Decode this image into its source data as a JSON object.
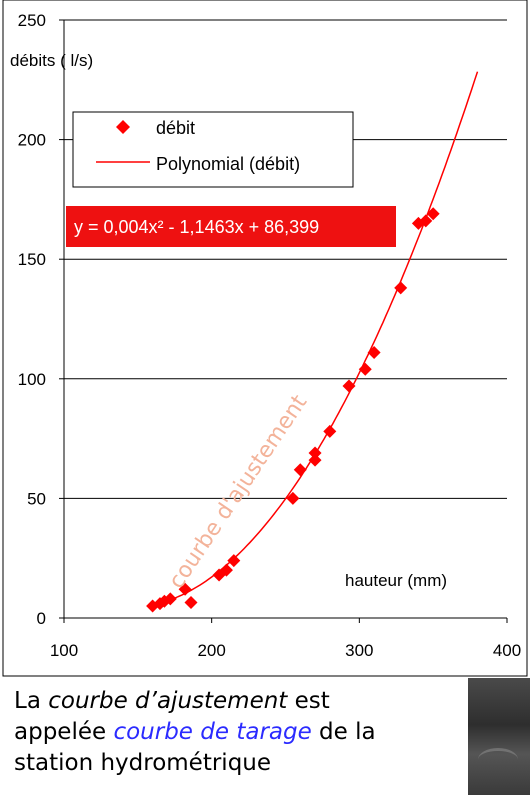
{
  "chart_data": {
    "type": "scatter",
    "ylabel": "débits ( l/s)",
    "xlabel": "hauteur (mm)",
    "xlim": [
      100,
      400
    ],
    "ylim": [
      0,
      250
    ],
    "xticks": [
      "100",
      "200",
      "300",
      "400"
    ],
    "yticks": [
      "0",
      "50",
      "100",
      "150",
      "200",
      "250"
    ],
    "grid": "horizontal",
    "legend_position": "top-left",
    "series": [
      {
        "name": "débit",
        "marker": "diamond",
        "color": "#ff0000",
        "points": [
          [
            160,
            5
          ],
          [
            165,
            6
          ],
          [
            168,
            7
          ],
          [
            172,
            8
          ],
          [
            182,
            12
          ],
          [
            186,
            6.5
          ],
          [
            205,
            18
          ],
          [
            210,
            20
          ],
          [
            215,
            24
          ],
          [
            255,
            50
          ],
          [
            260,
            62
          ],
          [
            270,
            66
          ],
          [
            270,
            69
          ],
          [
            280,
            78
          ],
          [
            293,
            97
          ],
          [
            304,
            104
          ],
          [
            310,
            111
          ],
          [
            328,
            138
          ],
          [
            340,
            165
          ],
          [
            345,
            166
          ],
          [
            350,
            169
          ]
        ]
      },
      {
        "name": "Polynomial (débit)",
        "line_color": "#ff0000",
        "x_range": [
          160,
          380
        ]
      }
    ],
    "trendline": {
      "a": 0.004,
      "b": -1.1463,
      "c": 86.399
    },
    "equation_label": "y = 0,004x² - 1,1463x + 86,399",
    "annotation": "courbe d'ajustement"
  },
  "caption": {
    "line1_a": "La ",
    "line1_b": "courbe d’ajustement",
    "line1_c": " est",
    "line2_a": "appelée ",
    "line2_b": "courbe de tarage",
    "line2_c": " de la",
    "line3": "station hydrométrique"
  },
  "colors": {
    "series": "#ff0000",
    "annotation": "#f3b39a",
    "highlight": "#2b2bff"
  }
}
